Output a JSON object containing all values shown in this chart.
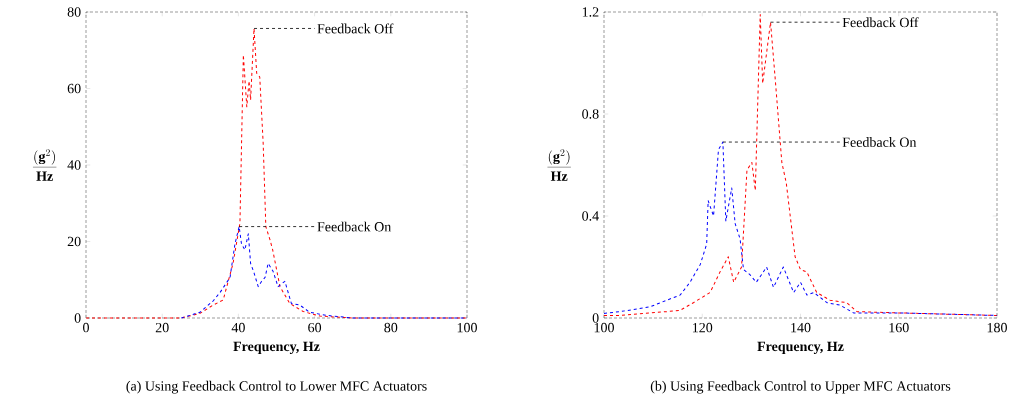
{
  "chart_data": [
    {
      "type": "line",
      "xlabel": "Frequency, Hz",
      "ylabel": "\\frac{(\\mathbf{g}^{2})}{\\mathbf{Hz}}",
      "xlim": [
        0,
        100
      ],
      "ylim": [
        0,
        80
      ],
      "xticks": [
        0,
        20,
        40,
        60,
        80,
        100
      ],
      "yticks": [
        0,
        20,
        40,
        60,
        80
      ],
      "grid": false,
      "line_style": "dashed",
      "marker": "none",
      "series": [
        {
          "color": "#ff0000",
          "x": [
            0,
            25,
            29.9,
            33.4,
            36,
            38.6,
            40.4,
            41.3,
            42.2,
            42.8,
            43.2,
            44.1,
            44.8,
            45.6,
            46.5,
            47.2,
            48.3,
            49,
            50.9,
            53.5,
            57,
            61.4,
            70,
            100
          ],
          "values": [
            0,
            0,
            1.2,
            3.4,
            4.7,
            14.3,
            24.8,
            68.8,
            55.2,
            62,
            57,
            75.7,
            64,
            63,
            45.7,
            23.9,
            20.4,
            17.8,
            8.2,
            3.8,
            1.7,
            0.5,
            0,
            0
          ]
        },
        {
          "color": "#0000ff",
          "x": [
            25,
            29.9,
            33.4,
            35.2,
            37.8,
            39.1,
            40.2,
            40.8,
            41.7,
            42.6,
            43.2,
            44.1,
            45.2,
            46.1,
            47,
            47.8,
            49.1,
            50.4,
            52.2,
            53.9,
            56.1,
            58.7,
            63,
            70,
            100
          ],
          "values": [
            0,
            1.5,
            4.5,
            6.7,
            10.6,
            19.4,
            23.9,
            19.4,
            17.8,
            22,
            14.3,
            11.8,
            8.2,
            9.6,
            10.6,
            14.3,
            12.2,
            8.2,
            9.6,
            3.8,
            3.4,
            1.5,
            0.7,
            0,
            0
          ]
        }
      ],
      "annotations": [
        {
          "text": "Feedback Off",
          "x": 44.1,
          "y": 75.7
        },
        {
          "text": "Feedback On",
          "x": 40.2,
          "y": 23.9
        },
        "(a)  Using Feedback Control to Lower MFC Actuators"
      ]
    },
    {
      "type": "line",
      "xlabel": "Frequency, Hz",
      "ylabel": "\\frac{(\\mathbf{g}^{2})}{\\mathbf{Hz}}",
      "xlim": [
        100,
        180
      ],
      "ylim": [
        0,
        1.2
      ],
      "xticks": [
        100,
        120,
        140,
        160,
        180
      ],
      "yticks": [
        0,
        0.4,
        0.8,
        1.2
      ],
      "grid": false,
      "line_style": "dashed",
      "marker": "none",
      "series": [
        {
          "color": "#ff0000",
          "x": [
            100,
            103.3,
            108,
            112.8,
            115.5,
            118.2,
            121.6,
            123.6,
            125.3,
            126.4,
            128,
            129.1,
            130.1,
            130.8,
            131.8,
            132.3,
            133.1,
            133.9,
            134.8,
            136.2,
            137.1,
            138.9,
            140,
            141.3,
            143.3,
            146,
            149.4,
            151.5,
            160,
            170,
            180
          ],
          "values": [
            0.01,
            0.01,
            0.018,
            0.025,
            0.03,
            0.06,
            0.1,
            0.18,
            0.24,
            0.14,
            0.2,
            0.58,
            0.61,
            0.5,
            1.19,
            0.92,
            1.04,
            1.16,
            0.95,
            0.61,
            0.53,
            0.24,
            0.19,
            0.18,
            0.1,
            0.07,
            0.06,
            0.025,
            0.02,
            0.015,
            0.01
          ]
        },
        {
          "color": "#0000ff",
          "x": [
            100,
            103.3,
            109.4,
            112.8,
            115.5,
            117.5,
            119.6,
            120.9,
            121.2,
            122.3,
            123.3,
            124.2,
            124.8,
            126,
            126.7,
            127.7,
            128.4,
            129.7,
            131,
            133.1,
            134.5,
            136.5,
            138.6,
            140,
            141.3,
            142.7,
            145.4,
            148.1,
            150.8,
            160,
            170,
            180
          ],
          "values": [
            0.018,
            0.025,
            0.044,
            0.07,
            0.09,
            0.14,
            0.21,
            0.29,
            0.46,
            0.4,
            0.66,
            0.69,
            0.38,
            0.51,
            0.37,
            0.31,
            0.19,
            0.17,
            0.14,
            0.2,
            0.12,
            0.2,
            0.1,
            0.14,
            0.09,
            0.1,
            0.06,
            0.05,
            0.02,
            0.02,
            0.015,
            0.01
          ]
        }
      ],
      "annotations": [
        {
          "text": "Feedback Off",
          "x": 133.9,
          "y": 1.16
        },
        {
          "text": "Feedback On",
          "x": 124.2,
          "y": 0.69
        },
        "(b)  Using Feedback Control to Upper MFC Actuators"
      ]
    }
  ]
}
